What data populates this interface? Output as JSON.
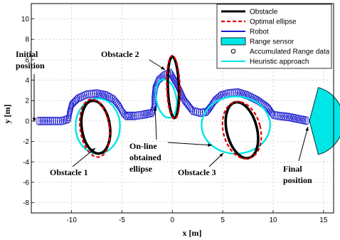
{
  "chart_data": {
    "type": "scatter",
    "xlabel": "x [m]",
    "ylabel": "y [m]",
    "xlim": [
      -14,
      16
    ],
    "ylim": [
      -9,
      11.5
    ],
    "xticks": [
      -10,
      -5,
      0,
      5,
      10,
      15
    ],
    "yticks": [
      -8,
      -6,
      -4,
      -2,
      0,
      2,
      4,
      6,
      8,
      10
    ],
    "grid": true,
    "legend_position": "top-right",
    "legend": [
      {
        "label": "Obstacle",
        "style": "line",
        "color": "#000000"
      },
      {
        "label": "Optimal ellipse",
        "style": "dashed",
        "color": "#e00000"
      },
      {
        "label": "Robot",
        "style": "line",
        "color": "#1a1ad0"
      },
      {
        "label": "Range sensor",
        "style": "patch",
        "color": "#00e5e5"
      },
      {
        "label": "Accumulated Range data",
        "style": "marker",
        "color": "#000000"
      },
      {
        "label": "Heuristic approach",
        "style": "line",
        "color": "#00e5e5"
      }
    ],
    "annotations": [
      {
        "lines": [
          "Initial",
          "position"
        ]
      },
      {
        "lines": [
          "Obstacle 2"
        ]
      },
      {
        "lines": [
          "Obstacle 1"
        ]
      },
      {
        "lines": [
          "On-line",
          "obtained",
          "ellipse"
        ]
      },
      {
        "lines": [
          "Obstacle 3"
        ]
      },
      {
        "lines": [
          "Final",
          "position"
        ]
      }
    ],
    "obstacles": [
      {
        "name": "Obstacle 1",
        "cx": -7.6,
        "cy": -0.6,
        "rx": 1.4,
        "ry": 2.6,
        "angle": 8
      },
      {
        "name": "Obstacle 2",
        "cx": 0.1,
        "cy": 3.3,
        "rx": 0.55,
        "ry": 3.0,
        "angle": 2
      },
      {
        "name": "Obstacle 3",
        "cx": 6.9,
        "cy": -0.9,
        "rx": 1.5,
        "ry": 2.8,
        "angle": 14
      }
    ],
    "optimal_ellipses": [
      {
        "cx": -7.7,
        "cy": -0.7,
        "rx": 1.45,
        "ry": 2.85,
        "angle": 8
      },
      {
        "cx": 0.1,
        "cy": 3.3,
        "rx": 0.65,
        "ry": 3.1,
        "angle": 2
      },
      {
        "cx": 6.9,
        "cy": -0.9,
        "rx": 1.85,
        "ry": 2.85,
        "angle": 14
      }
    ],
    "heuristic_ellipses": [
      {
        "cx": -7.4,
        "cy": -0.5,
        "rx": 2.2,
        "ry": 2.7,
        "angle": 0
      },
      {
        "cx": -0.6,
        "cy": 2.2,
        "rx": 1.0,
        "ry": 1.9,
        "angle": 10
      },
      {
        "cx": 6.3,
        "cy": -0.4,
        "rx": 3.4,
        "ry": 2.8,
        "angle": 0
      }
    ],
    "robot_path": {
      "x": [
        -13.3,
        -12,
        -11,
        -10.3,
        -10.2,
        -10,
        -9.4,
        -8.5,
        -7.5,
        -6.5,
        -5.8,
        -5.3,
        -4.9,
        -4.6,
        -4.3,
        -3.8,
        -3,
        -2,
        -1.8,
        -1.8,
        -1.7,
        -1.4,
        -0.8,
        -0.2,
        0.5,
        1.2,
        2,
        2.8,
        3.4,
        3.8,
        4.2,
        4.8,
        5.5,
        6.5,
        7.5,
        8.5,
        9.5,
        10,
        10.6,
        11.5,
        12.5,
        13.5
      ],
      "y": [
        0,
        0,
        0,
        0.2,
        0.8,
        1.6,
        2.2,
        2.6,
        2.7,
        2.5,
        2.1,
        1.5,
        0.8,
        0.5,
        0.5,
        0.5,
        0.6,
        0.8,
        1.4,
        2.3,
        3.3,
        4.0,
        4.5,
        4.7,
        3.5,
        2.0,
        1.0,
        0.8,
        0.9,
        1.4,
        2.0,
        2.5,
        2.7,
        2.8,
        2.5,
        2.0,
        1.3,
        0.6,
        0.5,
        0.4,
        0.2,
        0
      ]
    },
    "range_sensor": {
      "x": 13.6,
      "y": 0,
      "radius": 3.4,
      "start_deg": -75,
      "end_deg": 75
    }
  }
}
